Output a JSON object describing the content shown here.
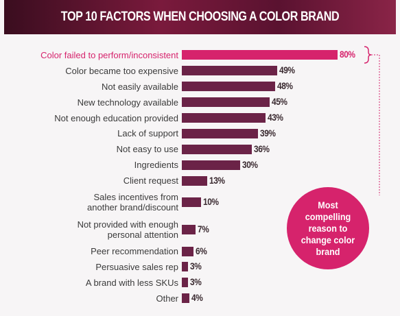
{
  "chart_data": {
    "type": "bar",
    "orientation": "horizontal",
    "title": "TOP 10 FACTORS WHEN CHOOSING A COLOR BRAND",
    "categories": [
      "Color failed to perform/inconsistent",
      "Color became too expensive",
      "Not easily available",
      "New technology available",
      "Not enough education provided",
      "Lack of support",
      "Not easy to use",
      "Ingredients",
      "Client request",
      "Sales incentives from\nanother brand/discount",
      "Not provided with enough\npersonal attention",
      "Peer recommendation",
      "Persuasive sales rep",
      "A brand with less SKUs",
      "Other"
    ],
    "values": [
      80,
      49,
      48,
      45,
      43,
      39,
      36,
      30,
      13,
      10,
      7,
      6,
      3,
      3,
      4
    ],
    "value_labels": [
      "80%",
      "49%",
      "48%",
      "45%",
      "43%",
      "39%",
      "36%",
      "30%",
      "13%",
      "10%",
      "7%",
      "6%",
      "3%",
      "3%",
      "4%"
    ],
    "colors": [
      "#d6236c",
      "#6b2347",
      "#6b2347",
      "#6b2347",
      "#6b2347",
      "#6b2347",
      "#6b2347",
      "#6b2347",
      "#6b2347",
      "#6b2347",
      "#6b2347",
      "#6b2347",
      "#6b2347",
      "#6b2347",
      "#6b2347"
    ],
    "annotation": "Most compelling reason to change color brand"
  }
}
